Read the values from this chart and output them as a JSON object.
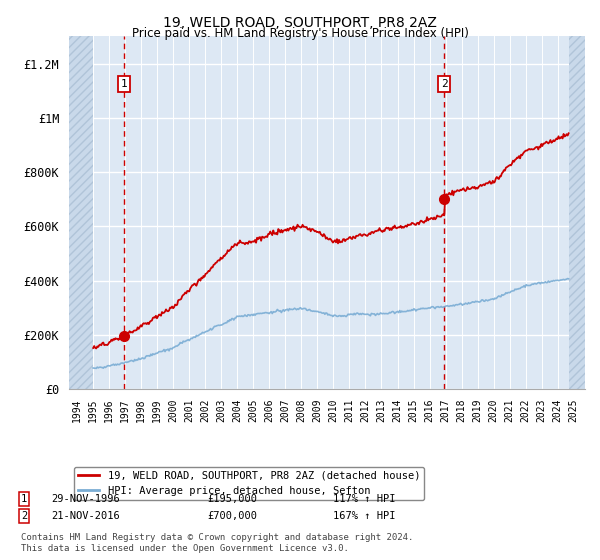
{
  "title": "19, WELD ROAD, SOUTHPORT, PR8 2AZ",
  "subtitle": "Price paid vs. HM Land Registry's House Price Index (HPI)",
  "hpi_label": "HPI: Average price, detached house, Sefton",
  "property_label": "19, WELD ROAD, SOUTHPORT, PR8 2AZ (detached house)",
  "footnote": "Contains HM Land Registry data © Crown copyright and database right 2024.\nThis data is licensed under the Open Government Licence v3.0.",
  "sale1_date": "29-NOV-1996",
  "sale1_price": 195000,
  "sale1_hpi_text": "117% ↑ HPI",
  "sale2_date": "21-NOV-2016",
  "sale2_price": 700000,
  "sale2_hpi_text": "167% ↑ HPI",
  "ylim": [
    0,
    1300000
  ],
  "yticks": [
    0,
    200000,
    400000,
    600000,
    800000,
    1000000,
    1200000
  ],
  "ytick_labels": [
    "£0",
    "£200K",
    "£400K",
    "£600K",
    "£800K",
    "£1M",
    "£1.2M"
  ],
  "xlim_start": 1993.5,
  "xlim_end": 2025.7,
  "plot_bg": "#dde8f4",
  "hatch_bg": "#c9d9ea",
  "hatch_color": "#b0c4d8",
  "property_color": "#cc0000",
  "hpi_color": "#7aadd4",
  "sale_marker_color": "#cc0000",
  "annotation_color": "#cc0000",
  "grid_color": "#ffffff",
  "vline_color": "#cc0000",
  "hatch_left_end": 1995.0,
  "hatch_right_start": 2024.7,
  "sale1_t": 1996.917,
  "sale2_t": 2016.917
}
